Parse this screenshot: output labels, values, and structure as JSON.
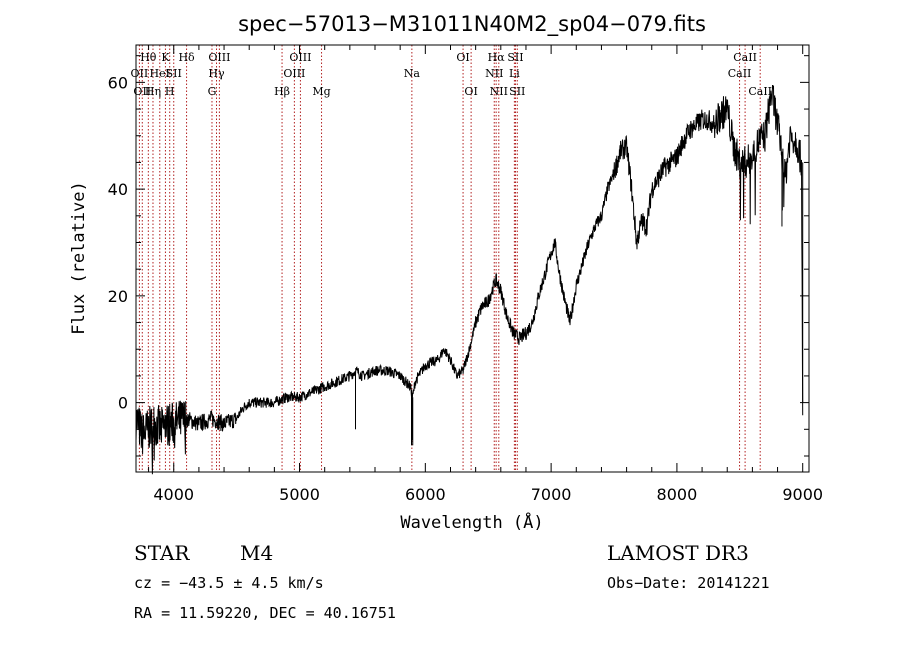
{
  "chart_data": {
    "type": "line",
    "title": "spec−57013−M31011N40M2_sp04−079.fits",
    "xlabel": "Wavelength (Å)",
    "ylabel": "Flux (relative)",
    "xlim": [
      3700,
      9050
    ],
    "ylim": [
      -13,
      67
    ],
    "xticks": [
      4000,
      5000,
      6000,
      7000,
      8000,
      9000
    ],
    "yticks": [
      0,
      20,
      40,
      60
    ],
    "x_minor_step": 200,
    "y_minor_step": 5,
    "series": [
      {
        "name": "spectrum",
        "anchors": [
          [
            3700,
            -3
          ],
          [
            3750,
            -6
          ],
          [
            3800,
            -5
          ],
          [
            3850,
            -4
          ],
          [
            3900,
            -5
          ],
          [
            3950,
            -4
          ],
          [
            4000,
            -4
          ],
          [
            4100,
            -3
          ],
          [
            4200,
            -4
          ],
          [
            4300,
            -3
          ],
          [
            4400,
            -4
          ],
          [
            4500,
            -3
          ],
          [
            4550,
            -1
          ],
          [
            4600,
            0
          ],
          [
            4700,
            0
          ],
          [
            4800,
            0
          ],
          [
            4900,
            1
          ],
          [
            5000,
            1
          ],
          [
            5100,
            2
          ],
          [
            5200,
            3
          ],
          [
            5300,
            4
          ],
          [
            5400,
            5
          ],
          [
            5450,
            6
          ],
          [
            5500,
            5
          ],
          [
            5600,
            6
          ],
          [
            5700,
            6
          ],
          [
            5800,
            5
          ],
          [
            5880,
            3
          ],
          [
            5900,
            1
          ],
          [
            5920,
            4
          ],
          [
            6000,
            7
          ],
          [
            6100,
            8
          ],
          [
            6150,
            10
          ],
          [
            6200,
            8
          ],
          [
            6250,
            5
          ],
          [
            6300,
            6
          ],
          [
            6350,
            10
          ],
          [
            6400,
            15
          ],
          [
            6450,
            18
          ],
          [
            6500,
            19
          ],
          [
            6560,
            23
          ],
          [
            6600,
            21
          ],
          [
            6650,
            16
          ],
          [
            6700,
            13
          ],
          [
            6750,
            12
          ],
          [
            6800,
            13
          ],
          [
            6850,
            15
          ],
          [
            6900,
            20
          ],
          [
            6950,
            24
          ],
          [
            7000,
            28
          ],
          [
            7030,
            30
          ],
          [
            7060,
            25
          ],
          [
            7100,
            20
          ],
          [
            7150,
            15
          ],
          [
            7200,
            22
          ],
          [
            7250,
            26
          ],
          [
            7300,
            30
          ],
          [
            7350,
            33
          ],
          [
            7400,
            35
          ],
          [
            7450,
            40
          ],
          [
            7500,
            43
          ],
          [
            7550,
            47
          ],
          [
            7600,
            48
          ],
          [
            7640,
            40
          ],
          [
            7680,
            30
          ],
          [
            7720,
            34
          ],
          [
            7760,
            33
          ],
          [
            7800,
            40
          ],
          [
            7850,
            42
          ],
          [
            7900,
            44
          ],
          [
            7950,
            45
          ],
          [
            8000,
            46
          ],
          [
            8050,
            49
          ],
          [
            8100,
            51
          ],
          [
            8150,
            52
          ],
          [
            8200,
            53
          ],
          [
            8250,
            53
          ],
          [
            8300,
            52
          ],
          [
            8350,
            54
          ],
          [
            8400,
            55
          ],
          [
            8450,
            48
          ],
          [
            8500,
            45
          ],
          [
            8550,
            45
          ],
          [
            8600,
            46
          ],
          [
            8650,
            49
          ],
          [
            8700,
            50
          ],
          [
            8750,
            58
          ],
          [
            8780,
            55
          ],
          [
            8800,
            52
          ],
          [
            8830,
            48
          ],
          [
            8860,
            42
          ],
          [
            8900,
            50
          ],
          [
            8950,
            49
          ],
          [
            8990,
            45
          ],
          [
            9000,
            0
          ]
        ]
      }
    ],
    "line_markers": [
      {
        "wl": 3727,
        "label": "OII",
        "row": 2
      },
      {
        "wl": 3750,
        "label": "OII",
        "row": 3
      },
      {
        "wl": 3798,
        "label": "Hθ",
        "row": 1
      },
      {
        "wl": 3835,
        "label": "Hη",
        "row": 3
      },
      {
        "wl": 3889,
        "label": "HeI",
        "row": 2
      },
      {
        "wl": 3934,
        "label": "K",
        "row": 1
      },
      {
        "wl": 3968,
        "label": "H",
        "row": 3
      },
      {
        "wl": 4000,
        "label": "SII",
        "row": 2
      },
      {
        "wl": 4102,
        "label": "Hδ",
        "row": 1
      },
      {
        "wl": 4304,
        "label": "G",
        "row": 3
      },
      {
        "wl": 4340,
        "label": "Hγ",
        "row": 2
      },
      {
        "wl": 4363,
        "label": "OIII",
        "row": 1
      },
      {
        "wl": 4861,
        "label": "Hβ",
        "row": 3
      },
      {
        "wl": 4959,
        "label": "OIII",
        "row": 2
      },
      {
        "wl": 5007,
        "label": "OIII",
        "row": 1
      },
      {
        "wl": 5175,
        "label": "Mg",
        "row": 3
      },
      {
        "wl": 5893,
        "label": "Na",
        "row": 2
      },
      {
        "wl": 6300,
        "label": "OI",
        "row": 1
      },
      {
        "wl": 6364,
        "label": "OI",
        "row": 3
      },
      {
        "wl": 6548,
        "label": "NII",
        "row": 2
      },
      {
        "wl": 6563,
        "label": "Hα",
        "row": 1
      },
      {
        "wl": 6584,
        "label": "NII",
        "row": 3
      },
      {
        "wl": 6708,
        "label": "Li",
        "row": 2
      },
      {
        "wl": 6717,
        "label": "SII",
        "row": 1
      },
      {
        "wl": 6731,
        "label": "SII",
        "row": 3
      },
      {
        "wl": 8498,
        "label": "CaII",
        "row": 2
      },
      {
        "wl": 8542,
        "label": "CaII",
        "row": 1
      },
      {
        "wl": 8662,
        "label": "CaII",
        "row": 3
      }
    ],
    "marker_color": "#b22222"
  },
  "info": {
    "object_class": "STAR",
    "subclass": "M4",
    "velocity": "cz = −43.5 ± 4.5 km/s",
    "coordinates": "RA =  11.59220, DEC =  40.16751",
    "survey": "LAMOST DR3",
    "obs_date": "Obs−Date: 20141221"
  }
}
